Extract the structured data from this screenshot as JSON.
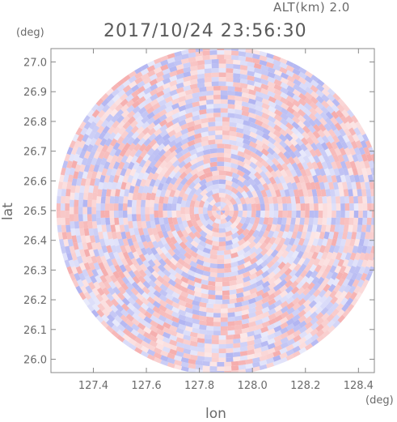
{
  "header": {
    "altitude_label": "ALT(km)  2.0",
    "timestamp": "2017/10/24  23:56:30"
  },
  "chart_data": {
    "type": "heatmap",
    "title": "2017/10/24  23:56:30",
    "xlabel": "lon",
    "ylabel": "lat",
    "x_unit": "(deg)",
    "y_unit": "(deg)",
    "xlim": [
      127.24,
      128.46
    ],
    "ylim": [
      25.955,
      27.045
    ],
    "x_ticks": [
      "127.4",
      "127.6",
      "127.8",
      "128.0",
      "128.2",
      "128.4"
    ],
    "x_tick_values": [
      127.4,
      127.6,
      127.8,
      128.0,
      128.2,
      128.4
    ],
    "y_ticks": [
      "26.0",
      "26.1",
      "26.2",
      "26.3",
      "26.4",
      "26.5",
      "26.6",
      "26.7",
      "26.8",
      "26.9",
      "27.0"
    ],
    "y_tick_values": [
      26.0,
      26.1,
      26.2,
      26.3,
      26.4,
      26.5,
      26.6,
      26.7,
      26.8,
      26.9,
      27.0
    ],
    "center": [
      127.88,
      26.5
    ],
    "colors": {
      "positive": "#f4a3a3",
      "negative": "#a8acf0",
      "frame": "#888888"
    }
  }
}
